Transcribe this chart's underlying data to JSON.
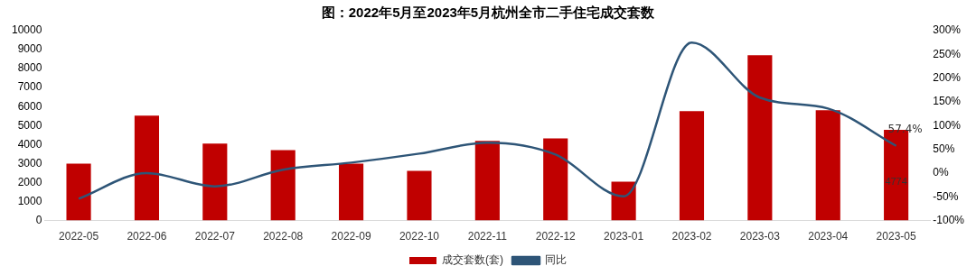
{
  "chart_data": {
    "type": "bar",
    "title": "图：2022年5月至2023年5月杭州全市二手住宅成交套数",
    "categories": [
      "2022-05",
      "2022-06",
      "2022-07",
      "2022-08",
      "2022-09",
      "2022-10",
      "2022-11",
      "2022-12",
      "2023-01",
      "2023-02",
      "2023-03",
      "2023-04",
      "2023-05"
    ],
    "series": [
      {
        "name": "成交套数(套)",
        "color": "#c00000",
        "values": [
          3000,
          5520,
          4050,
          3710,
          3000,
          2620,
          4190,
          4330,
          2050,
          5760,
          8710,
          5810,
          4774
        ],
        "value_labels": [
          null,
          null,
          null,
          null,
          null,
          null,
          null,
          null,
          null,
          null,
          null,
          null,
          "4774"
        ]
      },
      {
        "name": "同比",
        "type": "line",
        "axis": "y2",
        "color": "#2e5577",
        "values": [
          -54,
          0,
          -28,
          7,
          22,
          41,
          64,
          39,
          -49,
          275,
          159,
          136,
          57.4
        ],
        "value_labels": [
          null,
          null,
          null,
          null,
          null,
          null,
          null,
          null,
          null,
          null,
          null,
          null,
          "57.4%"
        ]
      }
    ],
    "ylim": [
      0,
      10000
    ],
    "yticks": [
      0,
      1000,
      2000,
      3000,
      4000,
      5000,
      6000,
      7000,
      8000,
      9000,
      10000
    ],
    "y2lim": [
      -100,
      300
    ],
    "y2ticks": [
      {
        "value": -100,
        "label": "-100%"
      },
      {
        "value": -50,
        "label": "-50%"
      },
      {
        "value": 0,
        "label": "0%"
      },
      {
        "value": 50,
        "label": "50%"
      },
      {
        "value": 100,
        "label": "100%"
      },
      {
        "value": 150,
        "label": "150%"
      },
      {
        "value": 200,
        "label": "200%"
      },
      {
        "value": 250,
        "label": "250%"
      },
      {
        "value": 300,
        "label": "300%"
      }
    ],
    "grid": false,
    "legend": "bottom",
    "marker": "none",
    "line_style": "solid"
  }
}
